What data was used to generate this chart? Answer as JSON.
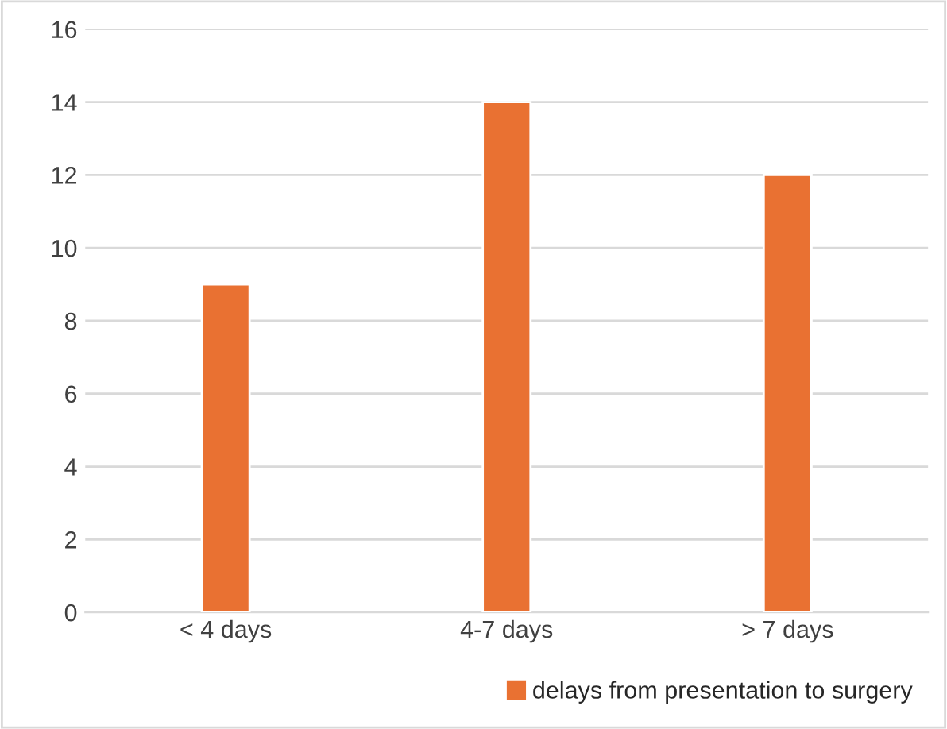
{
  "chart_data": {
    "type": "bar",
    "categories": [
      "< 4 days",
      "4-7 days",
      "> 7 days"
    ],
    "series": [
      {
        "name": "delays from presentation to surgery",
        "color": "#e97132",
        "values": [
          9,
          14,
          12
        ]
      }
    ],
    "ylim": [
      0,
      16
    ],
    "yticks": [
      0,
      2,
      4,
      6,
      8,
      10,
      12,
      14,
      16
    ],
    "grid": "y",
    "legend": "bottom"
  }
}
